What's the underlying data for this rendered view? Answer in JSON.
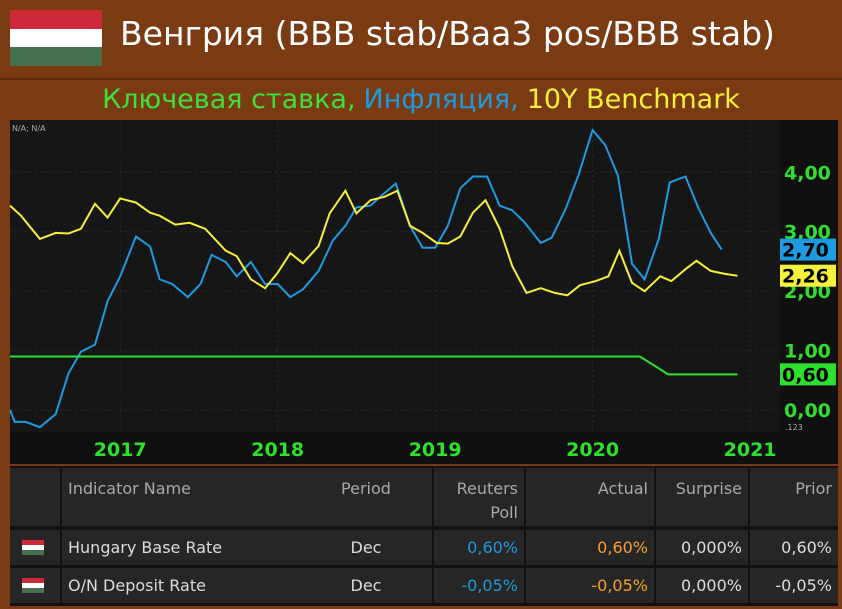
{
  "header": {
    "title": "Венгрия (BBB stab/Baa3 pos/BBB stab)"
  },
  "chart_data": {
    "type": "line",
    "title_parts": [
      {
        "text": "Ключевая ставка,",
        "color": "#3ee03e"
      },
      {
        "text": "Инфляция,",
        "color": "#1e9be0"
      },
      {
        "text": "10Y Benchmark",
        "color": "#f5f03c"
      }
    ],
    "corner_note": "N/A; N/A",
    "scale_note": ".123",
    "xlim": [
      2016.3,
      2021.19
    ],
    "xticks": [
      2017,
      2018,
      2019,
      2020,
      2021
    ],
    "ylim": [
      -0.37,
      4.88
    ],
    "yticks": [
      {
        "value": 0,
        "label": "0,00"
      },
      {
        "value": 1,
        "label": "1,00"
      },
      {
        "value": 2,
        "label": "2,00"
      },
      {
        "value": 3,
        "label": "3,00"
      },
      {
        "value": 4,
        "label": "4,00"
      }
    ],
    "grid": true,
    "series": [
      {
        "name": "Инфляция",
        "color": "#1e9be0",
        "end_label": "2,70",
        "x": [
          2016.3,
          2016.33,
          2016.4,
          2016.49,
          2016.59,
          2016.67,
          2016.75,
          2016.84,
          2016.92,
          2017.0,
          2017.1,
          2017.19,
          2017.25,
          2017.33,
          2017.43,
          2017.51,
          2017.58,
          2017.67,
          2017.74,
          2017.83,
          2017.92,
          2018.0,
          2018.08,
          2018.16,
          2018.26,
          2018.35,
          2018.43,
          2018.5,
          2018.59,
          2018.66,
          2018.75,
          2018.84,
          2018.92,
          2019.0,
          2019.08,
          2019.16,
          2019.24,
          2019.33,
          2019.41,
          2019.49,
          2019.57,
          2019.67,
          2019.74,
          2019.83,
          2019.91,
          2020.0,
          2020.08,
          2020.16,
          2020.25,
          2020.33,
          2020.42,
          2020.49,
          2020.59,
          2020.67,
          2020.75,
          2020.82
        ],
        "values": [
          0.0,
          -0.2,
          -0.2,
          -0.29,
          -0.07,
          0.61,
          0.98,
          1.1,
          1.83,
          2.25,
          2.92,
          2.75,
          2.2,
          2.12,
          1.9,
          2.12,
          2.61,
          2.49,
          2.25,
          2.49,
          2.12,
          2.12,
          1.9,
          2.03,
          2.34,
          2.85,
          3.1,
          3.41,
          3.44,
          3.61,
          3.81,
          3.1,
          2.73,
          2.73,
          3.1,
          3.73,
          3.93,
          3.93,
          3.44,
          3.36,
          3.15,
          2.81,
          2.9,
          3.39,
          3.95,
          4.71,
          4.46,
          3.95,
          2.46,
          2.2,
          2.88,
          3.83,
          3.93,
          3.41,
          2.98,
          2.7
        ]
      },
      {
        "name": "10Y Benchmark",
        "color": "#f5f03c",
        "end_label": "2,26",
        "x": [
          2016.3,
          2016.37,
          2016.49,
          2016.59,
          2016.67,
          2016.75,
          2016.84,
          2016.92,
          2017.0,
          2017.1,
          2017.19,
          2017.25,
          2017.35,
          2017.44,
          2017.54,
          2017.67,
          2017.74,
          2017.83,
          2017.92,
          2018.0,
          2018.08,
          2018.16,
          2018.26,
          2018.33,
          2018.43,
          2018.5,
          2018.59,
          2018.68,
          2018.76,
          2018.84,
          2018.92,
          2019.01,
          2019.08,
          2019.16,
          2019.24,
          2019.32,
          2019.41,
          2019.49,
          2019.58,
          2019.67,
          2019.76,
          2019.84,
          2019.92,
          2020.02,
          2020.1,
          2020.17,
          2020.25,
          2020.33,
          2020.43,
          2020.5,
          2020.59,
          2020.66,
          2020.75,
          2020.84,
          2020.92
        ],
        "values": [
          3.44,
          3.27,
          2.88,
          2.98,
          2.97,
          3.05,
          3.47,
          3.24,
          3.56,
          3.49,
          3.32,
          3.27,
          3.12,
          3.15,
          3.05,
          2.68,
          2.59,
          2.2,
          2.05,
          2.31,
          2.64,
          2.47,
          2.76,
          3.31,
          3.69,
          3.31,
          3.53,
          3.59,
          3.69,
          3.1,
          2.98,
          2.81,
          2.8,
          2.92,
          3.32,
          3.53,
          3.05,
          2.42,
          1.97,
          2.05,
          1.97,
          1.93,
          2.1,
          2.17,
          2.25,
          2.68,
          2.14,
          2.0,
          2.25,
          2.17,
          2.37,
          2.51,
          2.34,
          2.29,
          2.26
        ]
      },
      {
        "name": "Ключевая ставка",
        "color": "#2ee02e",
        "end_label": "0,60",
        "x": [
          2016.3,
          2020.3,
          2020.48,
          2020.92
        ],
        "values": [
          0.9,
          0.9,
          0.6,
          0.6
        ]
      }
    ]
  },
  "table": {
    "columns": [
      "Indicator Name",
      "Period",
      "Reuters Poll",
      "Actual",
      "Surprise",
      "Prior"
    ],
    "rows": [
      [
        "Hungary Base Rate",
        "Dec",
        "0,60%",
        "0,60%",
        "0,000%",
        "0,60%"
      ],
      [
        "O/N Deposit Rate",
        "Dec",
        "-0,05%",
        "-0,05%",
        "0,000%",
        "-0,05%"
      ]
    ]
  }
}
